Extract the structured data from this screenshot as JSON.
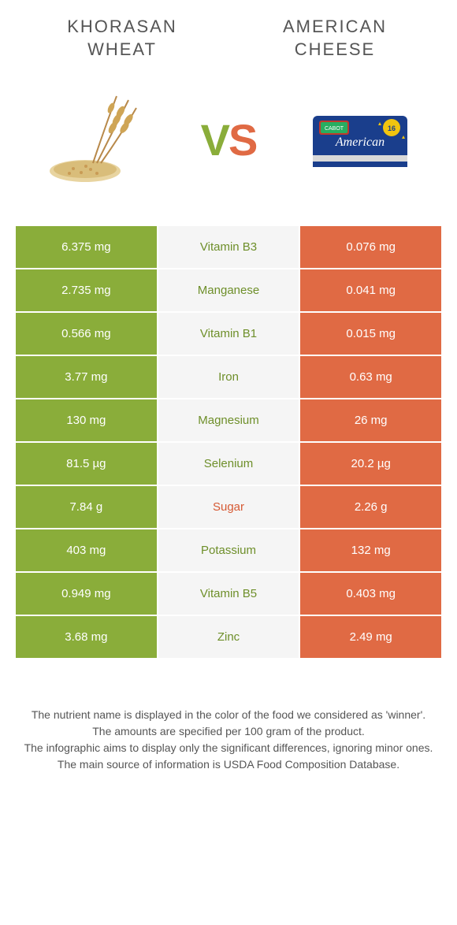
{
  "header": {
    "left_title": "KHORASAN WHEAT",
    "right_title": "AMERICAN CHEESE",
    "vs_v": "V",
    "vs_s": "S"
  },
  "colors": {
    "left": "#8aad3a",
    "right": "#e06a44",
    "mid_bg": "#f5f5f5",
    "nutrient_green": "#6e8f2a",
    "nutrient_orange": "#d65a34"
  },
  "icons": {
    "left": "wheat",
    "right": "cheese-box"
  },
  "rows": [
    {
      "left": "6.375 mg",
      "nutrient": "Vitamin B3",
      "winner": "left",
      "right": "0.076 mg"
    },
    {
      "left": "2.735 mg",
      "nutrient": "Manganese",
      "winner": "left",
      "right": "0.041 mg"
    },
    {
      "left": "0.566 mg",
      "nutrient": "Vitamin B1",
      "winner": "left",
      "right": "0.015 mg"
    },
    {
      "left": "3.77 mg",
      "nutrient": "Iron",
      "winner": "left",
      "right": "0.63 mg"
    },
    {
      "left": "130 mg",
      "nutrient": "Magnesium",
      "winner": "left",
      "right": "26 mg"
    },
    {
      "left": "81.5 µg",
      "nutrient": "Selenium",
      "winner": "left",
      "right": "20.2 µg"
    },
    {
      "left": "7.84 g",
      "nutrient": "Sugar",
      "winner": "right",
      "right": "2.26 g"
    },
    {
      "left": "403 mg",
      "nutrient": "Potassium",
      "winner": "left",
      "right": "132 mg"
    },
    {
      "left": "0.949 mg",
      "nutrient": "Vitamin B5",
      "winner": "left",
      "right": "0.403 mg"
    },
    {
      "left": "3.68 mg",
      "nutrient": "Zinc",
      "winner": "left",
      "right": "2.49 mg"
    }
  ],
  "footer": {
    "line1": "The nutrient name is displayed in the color of the food we considered as 'winner'.",
    "line2": "The amounts are specified per 100 gram of the product.",
    "line3": "The infographic aims to display only the significant differences, ignoring minor ones.",
    "line4": "The main source of information is USDA Food Composition Database."
  }
}
